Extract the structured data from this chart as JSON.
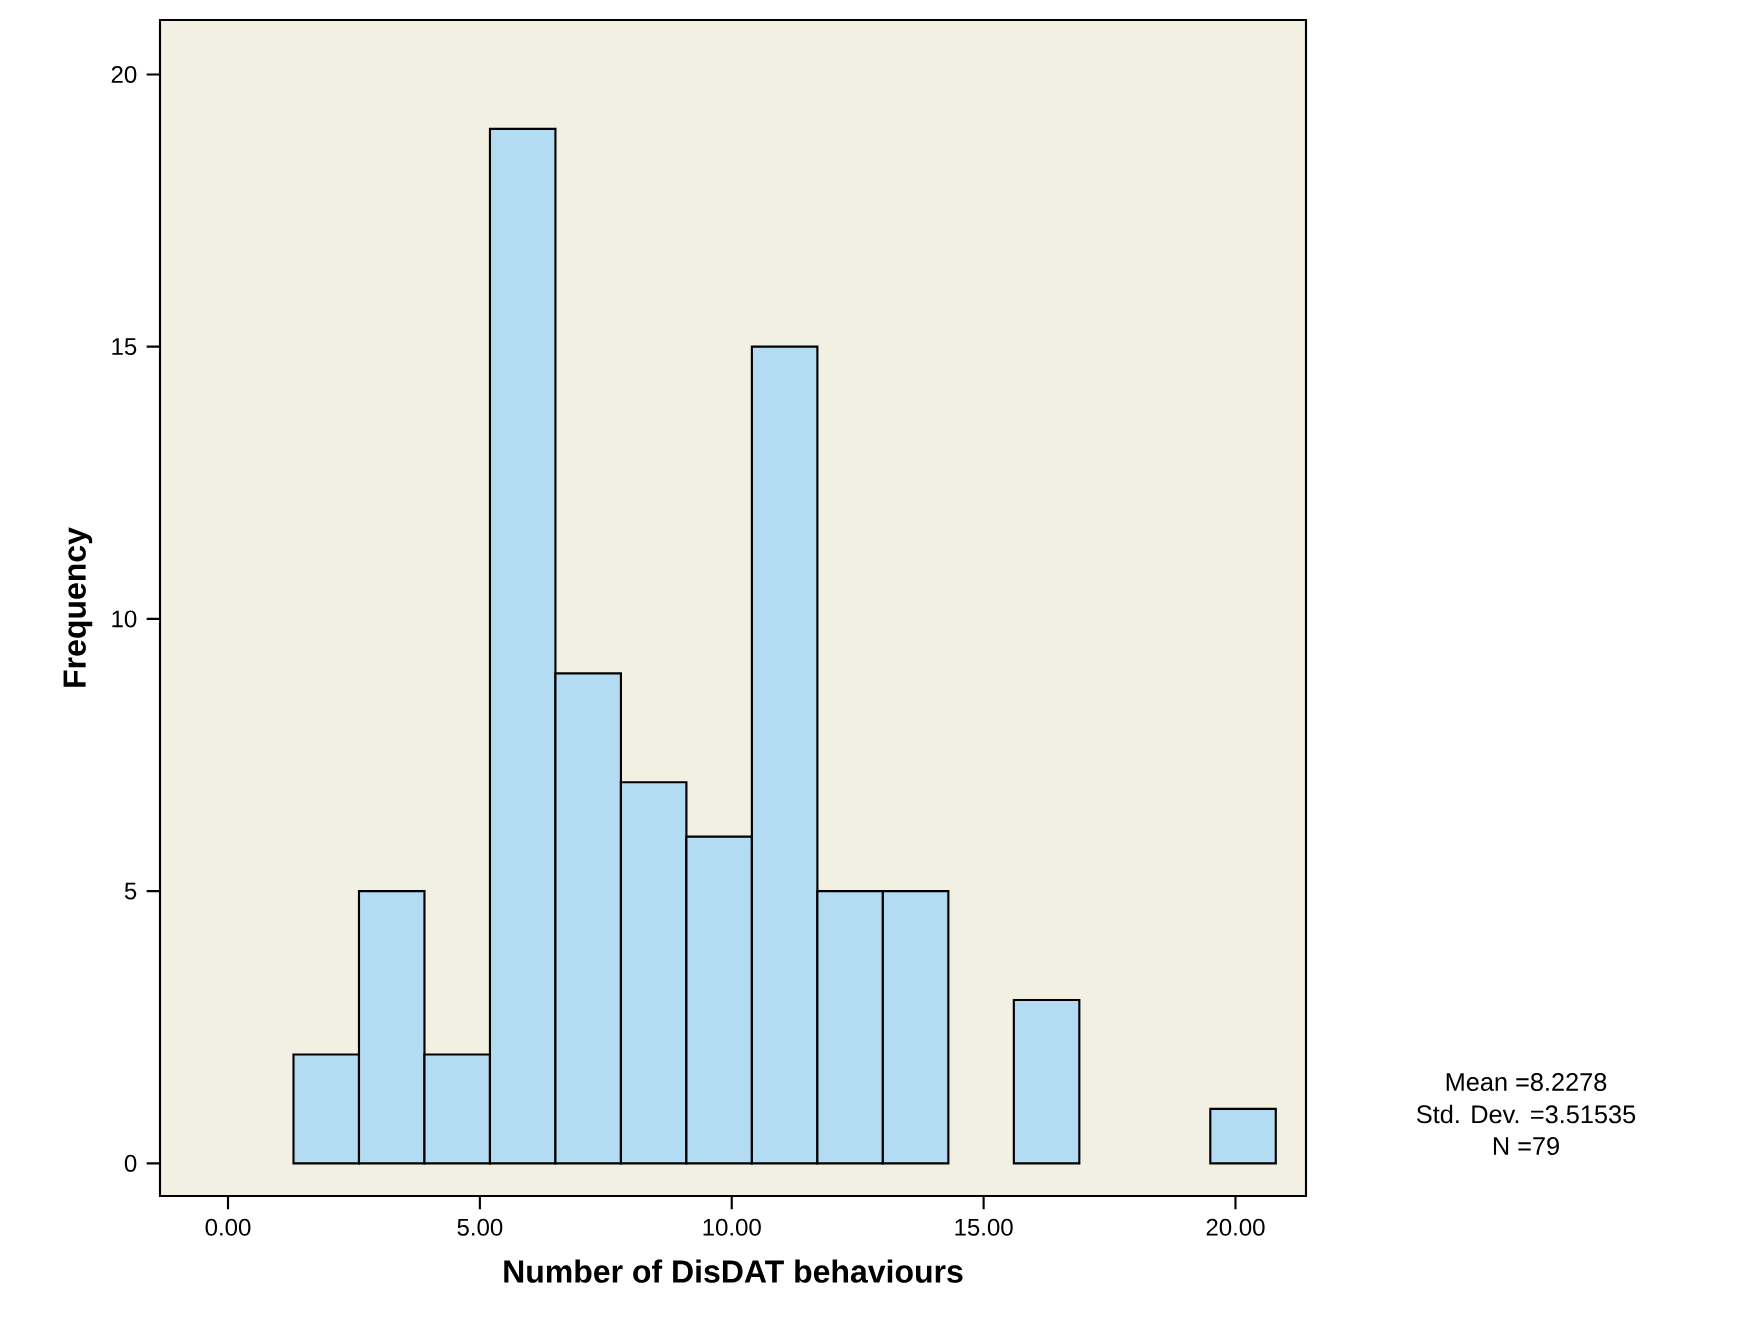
{
  "chart_data": {
    "type": "histogram",
    "xlabel": "Number of DisDAT behaviours",
    "ylabel": "Frequency",
    "bins": [
      1.3,
      2.6,
      3.9,
      5.2,
      6.5,
      7.8,
      9.1,
      10.4,
      11.7,
      13.0,
      14.3,
      15.6,
      16.9,
      18.2,
      19.5,
      20.8
    ],
    "values": [
      2,
      5,
      2,
      19,
      9,
      7,
      6,
      15,
      5,
      5,
      0,
      3,
      0,
      0,
      1
    ],
    "color": "#b3dcf2",
    "xlim": [
      -1.35,
      21.4
    ],
    "xticks": [
      {
        "value": 0,
        "label": "0.00"
      },
      {
        "value": 5,
        "label": "5.00"
      },
      {
        "value": 10,
        "label": "10.00"
      },
      {
        "value": 15,
        "label": "15.00"
      },
      {
        "value": 20,
        "label": "20.00"
      }
    ],
    "ylim": [
      -0.6,
      21
    ],
    "yticks": [
      0,
      5,
      10,
      15,
      20
    ],
    "annotations": [
      "Mean =8.2278",
      "Std. Dev. =3.51535",
      "N =79"
    ]
  }
}
